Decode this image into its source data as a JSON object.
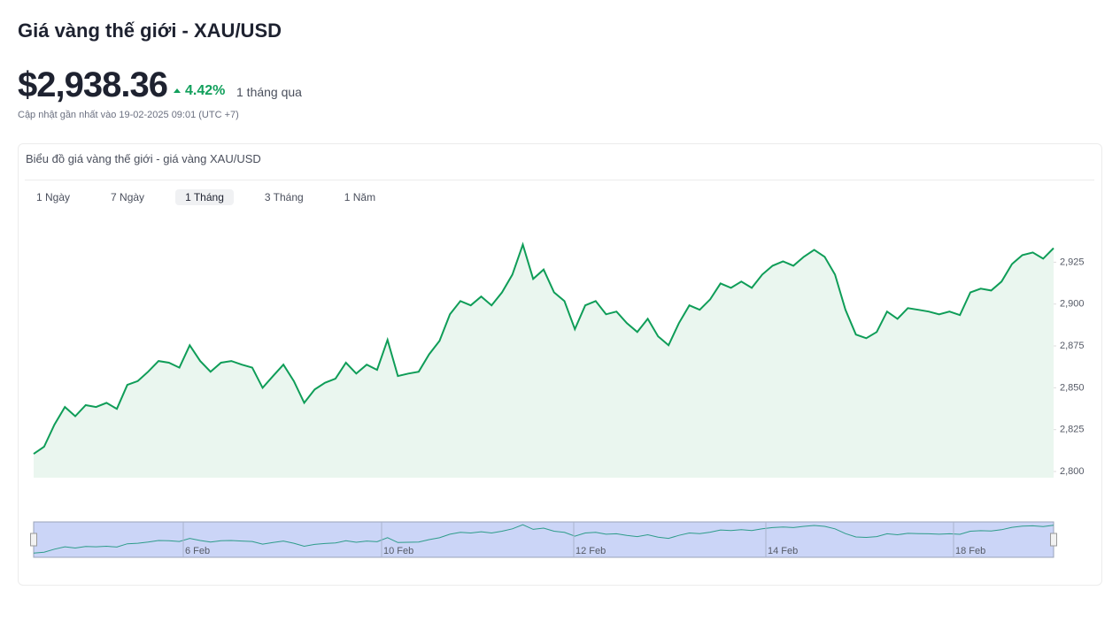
{
  "header": {
    "title": "Giá vàng thế giới - XAU/USD",
    "price": "$2,938.36",
    "change": "4.42%",
    "period": "1 tháng qua",
    "updated": "Cập nhật gần nhất vào 19-02-2025 09:01 (UTC +7)"
  },
  "card": {
    "title": "Biểu đồ giá vàng thế giới - giá vàng XAU/USD",
    "tabs": [
      "1 Ngày",
      "7 Ngày",
      "1 Tháng",
      "3 Tháng",
      "1 Năm"
    ]
  },
  "chart_data": {
    "type": "area",
    "color": "#0f9d58",
    "fill": "#eaf6ef",
    "values": [
      2810.5,
      2814.8,
      2828,
      2838.5,
      2833,
      2839.6,
      2838.5,
      2841,
      2837.4,
      2851.7,
      2854,
      2859.6,
      2866,
      2865,
      2862,
      2875.4,
      2866,
      2859.6,
      2865,
      2866,
      2863.8,
      2862,
      2850,
      2857,
      2863.8,
      2854,
      2841,
      2849,
      2853,
      2855.4,
      2865,
      2858.5,
      2863.8,
      2860.7,
      2878.6,
      2857,
      2858.5,
      2859.6,
      2870,
      2878,
      2893.9,
      2901.8,
      2899.2,
      2904.5,
      2899.2,
      2907,
      2917.6,
      2935.5,
      2915,
      2920.6,
      2907,
      2901.8,
      2885,
      2899.2,
      2901.8,
      2893.9,
      2895.5,
      2888.6,
      2883.3,
      2891.2,
      2880.7,
      2875.4,
      2888.6,
      2899.2,
      2896.6,
      2902.8,
      2912.3,
      2909.7,
      2913.4,
      2909.7,
      2917.6,
      2922.9,
      2925.5,
      2922.9,
      2928.2,
      2932.4,
      2928.2,
      2917.6,
      2896.6,
      2881.8,
      2879.6,
      2883.3,
      2895.5,
      2891.2,
      2897.6,
      2896.6,
      2895.5,
      2893.9,
      2895.5,
      2893.4,
      2907,
      2909.2,
      2908.1,
      2913.4,
      2923.9,
      2929.2,
      2930.8,
      2927.1,
      2933.4
    ],
    "ylim": [
      2800,
      2940
    ],
    "yticks": [
      {
        "value": 2800,
        "label": "2,800"
      },
      {
        "value": 2825,
        "label": "2,825"
      },
      {
        "value": 2850,
        "label": "2,850"
      },
      {
        "value": 2875,
        "label": "2,875"
      },
      {
        "value": 2900,
        "label": "2,900"
      },
      {
        "value": 2925,
        "label": "2,925"
      }
    ],
    "navigator_labels": [
      "6 Feb",
      "10 Feb",
      "12 Feb",
      "14 Feb",
      "18 Feb"
    ]
  }
}
